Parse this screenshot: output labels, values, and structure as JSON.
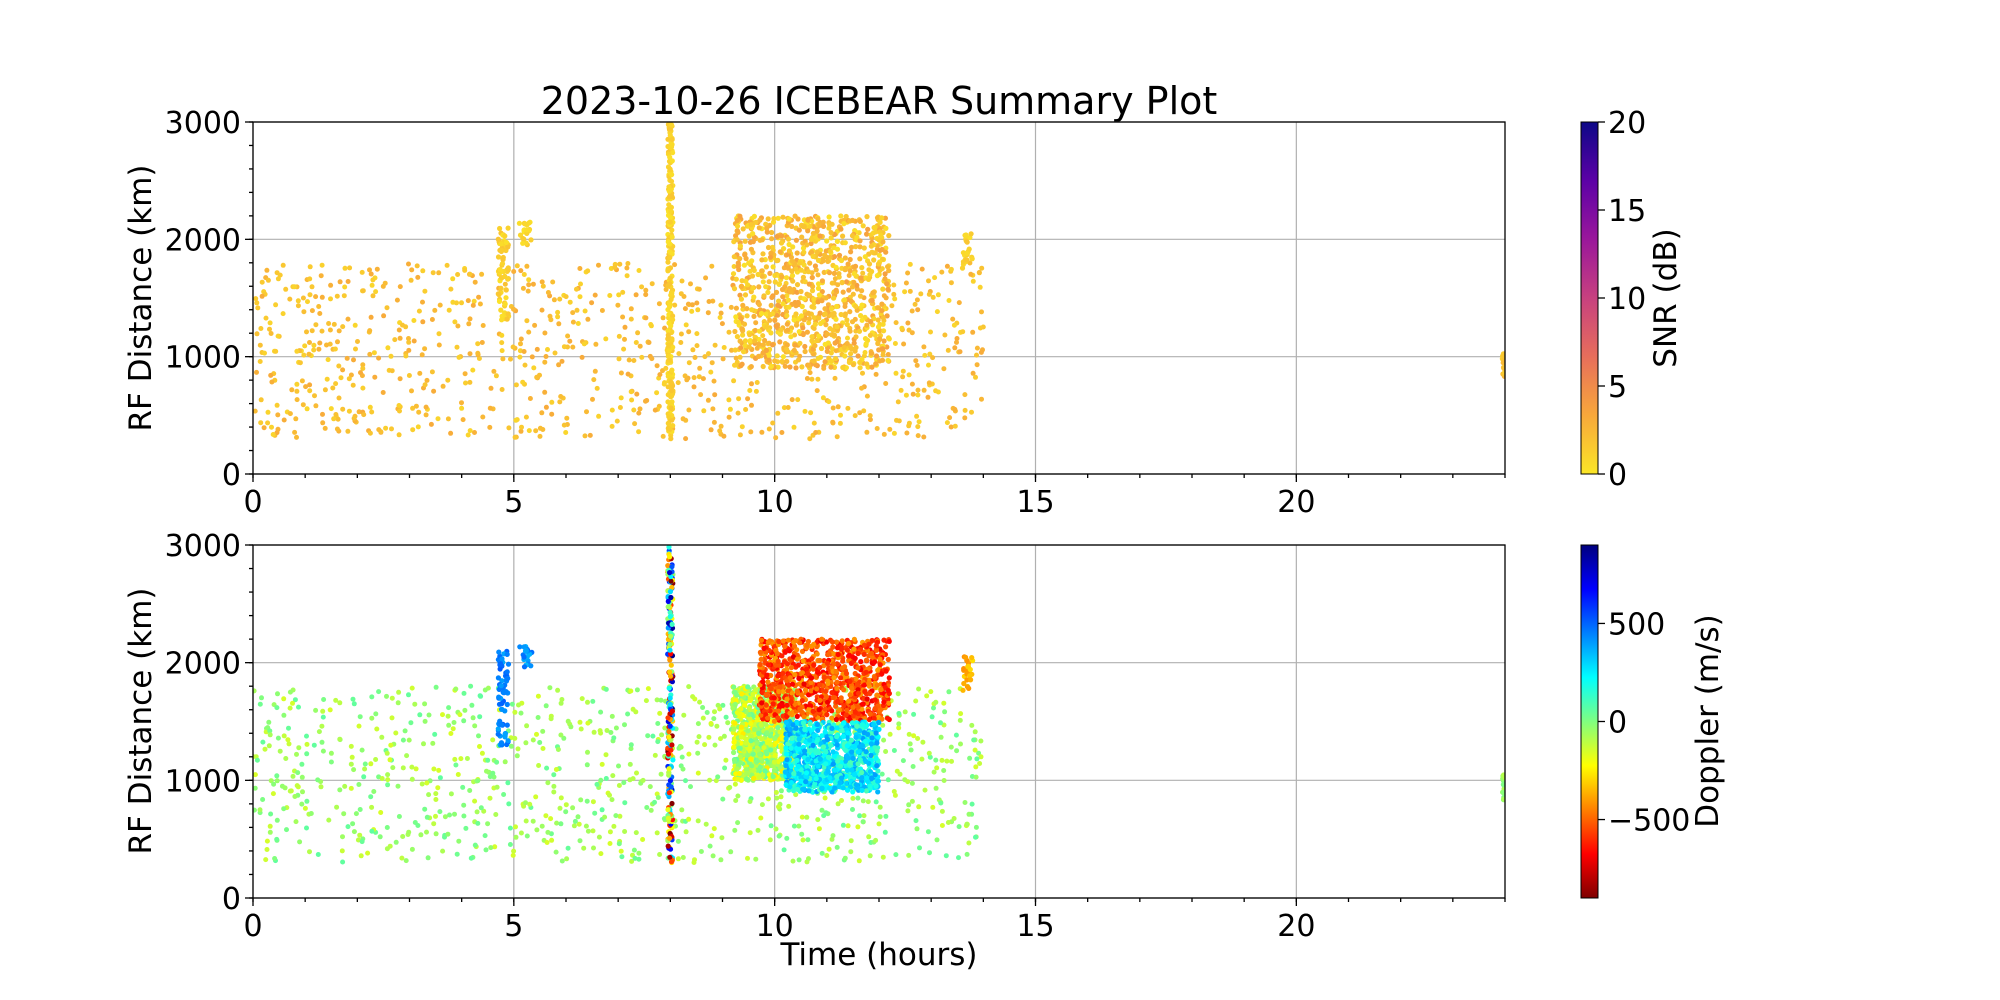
{
  "chart_data": [
    {
      "type": "scatter",
      "title": "2023-10-26 ICEBEAR Summary Plot",
      "xlabel": "",
      "ylabel": "RF Distance (km)",
      "xlim": [
        0,
        24
      ],
      "ylim": [
        0,
        3000
      ],
      "x_ticks": [
        "0",
        "5",
        "10",
        "15",
        "20"
      ],
      "y_ticks": [
        "0",
        "1000",
        "2000",
        "3000"
      ],
      "grid": true,
      "color_variable": "SNR",
      "colorbar": {
        "label": "SNR (dB)",
        "range": [
          0,
          20
        ],
        "ticks": [
          "0",
          "5",
          "10",
          "15",
          "20"
        ],
        "colormap": "plasma_r",
        "colors": [
          "#fbe627",
          "#f8a83b",
          "#e76e5b",
          "#c7417f",
          "#9a179b",
          "#5c01a6",
          "#0d0887"
        ]
      },
      "features": [
        {
          "name": "background echoes",
          "x_range": [
            0,
            14
          ],
          "y_range": [
            300,
            1800
          ],
          "value": 2
        },
        {
          "name": "echo band at 4.8 h",
          "x_range": [
            4.7,
            4.9
          ],
          "y_range": [
            1300,
            2100
          ],
          "value": 1
        },
        {
          "name": "echo cluster at 5.2 h",
          "x_range": [
            5.1,
            5.35
          ],
          "y_range": [
            1950,
            2150
          ],
          "value": 1
        },
        {
          "name": "vertical line at 8 h",
          "x_range": [
            7.95,
            8.05
          ],
          "y_range": [
            300,
            3000
          ],
          "value": 1
        },
        {
          "name": "main echo region",
          "x_range": [
            9.2,
            12.2
          ],
          "y_range": [
            900,
            2200
          ],
          "value": 2
        },
        {
          "name": "echo band at 13.7 h",
          "x_range": [
            13.6,
            13.8
          ],
          "y_range": [
            1750,
            2050
          ],
          "value": 1
        },
        {
          "name": "isolated points at 24 h",
          "x_range": [
            23.95,
            24
          ],
          "y_range": [
            820,
            1050
          ],
          "value": 2
        }
      ]
    },
    {
      "type": "scatter",
      "title": "",
      "xlabel": "Time (hours)",
      "ylabel": "RF Distance (km)",
      "xlim": [
        0,
        24
      ],
      "ylim": [
        0,
        3000
      ],
      "x_ticks": [
        "0",
        "5",
        "10",
        "15",
        "20"
      ],
      "y_ticks": [
        "0",
        "1000",
        "2000",
        "3000"
      ],
      "grid": true,
      "color_variable": "Doppler",
      "colorbar": {
        "label": "Doppler (m/s)",
        "range": [
          -900,
          900
        ],
        "ticks": [
          "500",
          "0",
          "−500"
        ],
        "tick_values": [
          500,
          0,
          -500
        ],
        "colormap": "jet_r",
        "colors": [
          "#7f0000",
          "#ff0000",
          "#ff8000",
          "#ffff00",
          "#80ff80",
          "#00ffff",
          "#0080ff",
          "#0000ff",
          "#00007f"
        ]
      },
      "features": [
        {
          "name": "background echoes",
          "x_range": [
            0,
            14
          ],
          "y_range": [
            300,
            1800
          ],
          "value": -50
        },
        {
          "name": "echo band at 4.8 h",
          "x_range": [
            4.7,
            4.9
          ],
          "y_range": [
            1300,
            2100
          ],
          "value": 450
        },
        {
          "name": "echo cluster at 5.2 h",
          "x_range": [
            5.1,
            5.35
          ],
          "y_range": [
            1950,
            2150
          ],
          "value": 420
        },
        {
          "name": "vertical line at 8 h",
          "x_range": [
            7.95,
            8.05
          ],
          "y_range": [
            300,
            3000
          ],
          "value": 0
        },
        {
          "name": "main echo region west part",
          "x_range": [
            9.2,
            10.4
          ],
          "y_range": [
            1000,
            1800
          ],
          "value": -100
        },
        {
          "name": "main echo region upper part",
          "x_range": [
            9.7,
            12.2
          ],
          "y_range": [
            1500,
            2200
          ],
          "value": -550
        },
        {
          "name": "main echo region lower part",
          "x_range": [
            10.2,
            12.0
          ],
          "y_range": [
            900,
            1500
          ],
          "value": 250
        },
        {
          "name": "echo band at 13.7 h",
          "x_range": [
            13.6,
            13.8
          ],
          "y_range": [
            1750,
            2050
          ],
          "value": -350
        },
        {
          "name": "isolated points at 24 h",
          "x_range": [
            23.95,
            24
          ],
          "y_range": [
            820,
            1050
          ],
          "value": -50
        }
      ]
    }
  ]
}
